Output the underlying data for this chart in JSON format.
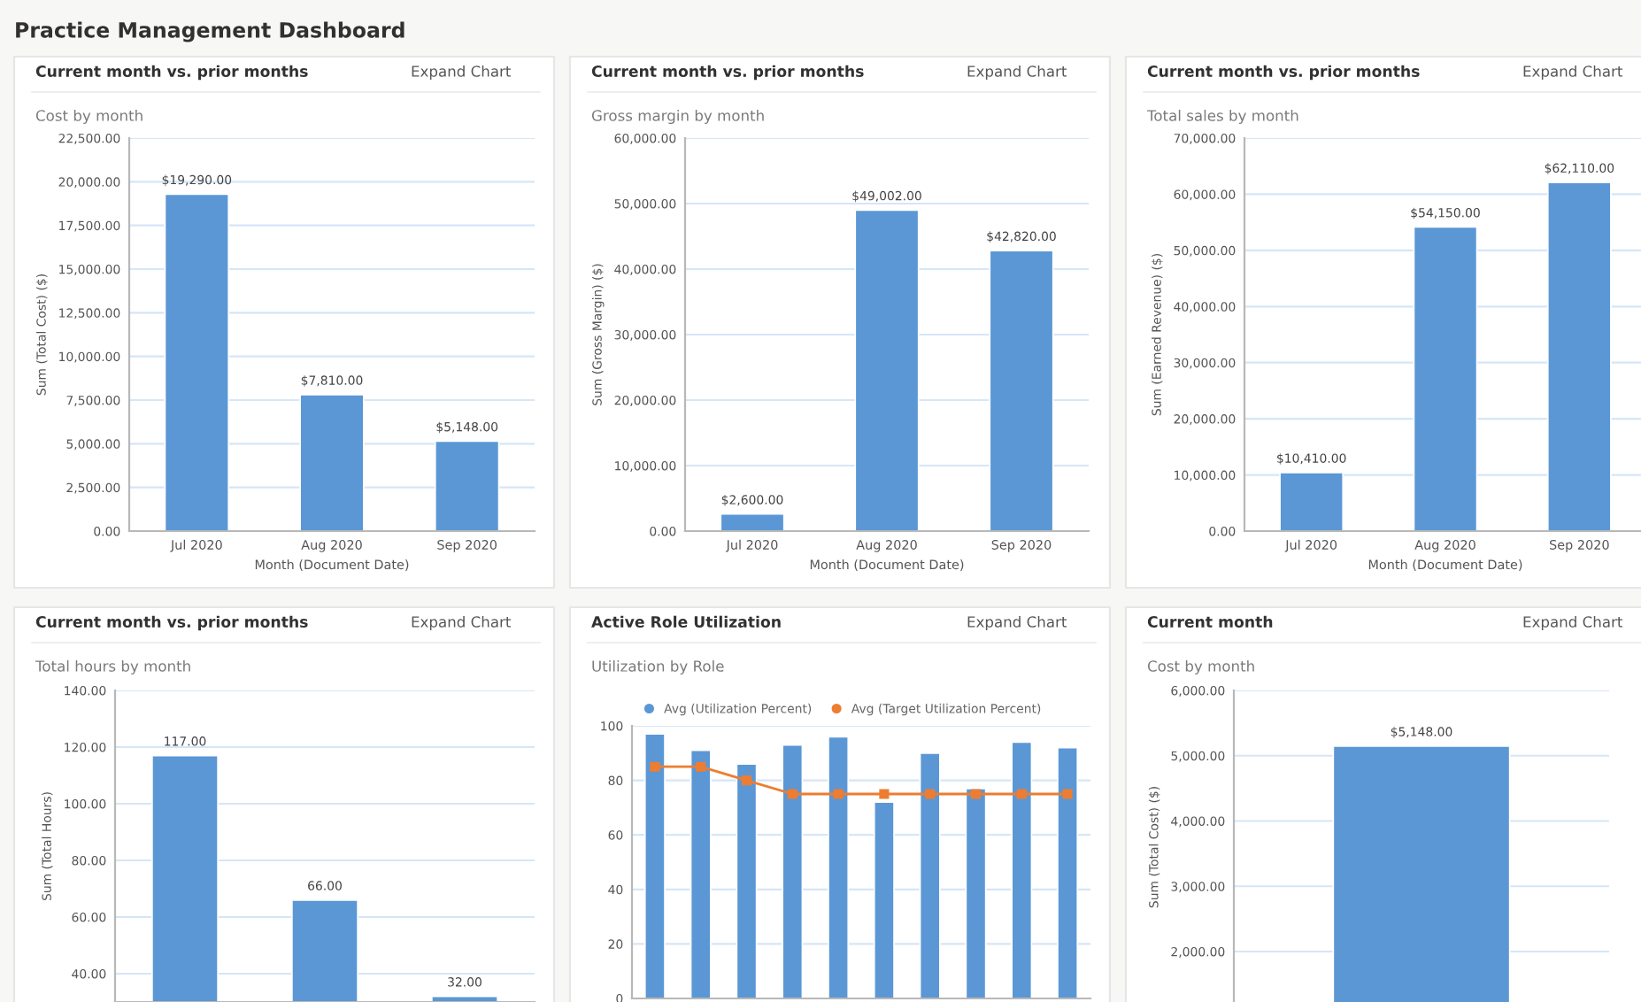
{
  "chart_data": [
    {
      "type": "bar",
      "title": "Current month vs. prior months",
      "subtitle": "Cost by month",
      "xlabel": "Month (Document Date)",
      "ylabel": "Sum (Total Cost) ($)",
      "annotations": [
        "Practice Management Dashboard",
        "Expand Chart"
      ],
      "categories": [
        "Jul 2020",
        "Aug 2020",
        "Sep 2020"
      ],
      "values": [
        19290,
        7810,
        5148
      ],
      "value_labels": [
        "$19,290.00",
        "$7,810.00",
        "$5,148.00"
      ],
      "color": "#5b97d5",
      "ylim": [
        0,
        22500
      ],
      "yticks": [
        {
          "value": 0,
          "label": "0.00"
        },
        {
          "value": 2500,
          "label": "2,500.00"
        },
        {
          "value": 5000,
          "label": "5,000.00"
        },
        {
          "value": 7500,
          "label": "7,500.00"
        },
        {
          "value": 10000,
          "label": "10,000.00"
        },
        {
          "value": 12500,
          "label": "12,500.00"
        },
        {
          "value": 15000,
          "label": "15,000.00"
        },
        {
          "value": 17500,
          "label": "17,500.00"
        },
        {
          "value": 20000,
          "label": "20,000.00"
        },
        {
          "value": 22500,
          "label": "22,500.00"
        }
      ],
      "grid": "y"
    },
    {
      "type": "bar",
      "title": "Current month vs. prior months",
      "subtitle": "Gross margin by month",
      "xlabel": "Month (Document Date)",
      "ylabel": "Sum (Gross Margin) ($)",
      "annotations": [
        "Expand Chart"
      ],
      "categories": [
        "Jul 2020",
        "Aug 2020",
        "Sep 2020"
      ],
      "values": [
        2600,
        49002,
        42820
      ],
      "value_labels": [
        "$2,600.00",
        "$49,002.00",
        "$42,820.00"
      ],
      "color": "#5b97d5",
      "ylim": [
        0,
        60000
      ],
      "yticks": [
        {
          "value": 0,
          "label": "0.00"
        },
        {
          "value": 10000,
          "label": "10,000.00"
        },
        {
          "value": 20000,
          "label": "20,000.00"
        },
        {
          "value": 30000,
          "label": "30,000.00"
        },
        {
          "value": 40000,
          "label": "40,000.00"
        },
        {
          "value": 50000,
          "label": "50,000.00"
        },
        {
          "value": 60000,
          "label": "60,000.00"
        }
      ],
      "grid": "y"
    },
    {
      "type": "bar",
      "title": "Current month vs. prior months",
      "subtitle": "Total sales by month",
      "xlabel": "Month (Document Date)",
      "ylabel": "Sum (Earned Revenue) ($)",
      "annotations": [
        "Expand Chart"
      ],
      "categories": [
        "Jul 2020",
        "Aug 2020",
        "Sep 2020"
      ],
      "values": [
        10410,
        54150,
        62110
      ],
      "value_labels": [
        "$10,410.00",
        "$54,150.00",
        "$62,110.00"
      ],
      "color": "#5b97d5",
      "ylim": [
        0,
        70000
      ],
      "yticks": [
        {
          "value": 0,
          "label": "0.00"
        },
        {
          "value": 10000,
          "label": "10,000.00"
        },
        {
          "value": 20000,
          "label": "20,000.00"
        },
        {
          "value": 30000,
          "label": "30,000.00"
        },
        {
          "value": 40000,
          "label": "40,000.00"
        },
        {
          "value": 50000,
          "label": "50,000.00"
        },
        {
          "value": 60000,
          "label": "60,000.00"
        },
        {
          "value": 70000,
          "label": "70,000.00"
        }
      ],
      "grid": "y"
    },
    {
      "type": "bar",
      "title": "Current month vs. prior months",
      "subtitle": "Total hours by month",
      "ylabel": "Sum (Total Hours)",
      "annotations": [
        "Expand Chart"
      ],
      "categories": [
        null,
        null,
        null
      ],
      "values": [
        117,
        66,
        32
      ],
      "value_labels": [
        "117.00",
        "66.00",
        "32.00"
      ],
      "color": "#5b97d5",
      "ylim": [
        30,
        140
      ],
      "yticks": [
        {
          "value": 40,
          "label": "40.00"
        },
        {
          "value": 60,
          "label": "60.00"
        },
        {
          "value": 80,
          "label": "80.00"
        },
        {
          "value": 100,
          "label": "100.00"
        },
        {
          "value": 120,
          "label": "120.00"
        },
        {
          "value": 140,
          "label": "140.00"
        }
      ],
      "grid": "y"
    },
    {
      "type": "bar",
      "title": "Active Role Utilization",
      "subtitle": "Utilization by Role",
      "annotations": [
        "Expand Chart"
      ],
      "categories": [
        null,
        null,
        null,
        null,
        null,
        null,
        null,
        null,
        null,
        null
      ],
      "series": [
        {
          "name": "Avg (Utilization Percent)",
          "type": "bar",
          "color": "#5b97d5",
          "values": [
            97,
            91,
            86,
            93,
            96,
            72,
            90,
            77,
            94,
            92
          ]
        },
        {
          "name": "Avg (Target Utilization Percent)",
          "type": "line",
          "color": "#ed7d31",
          "values": [
            85,
            85,
            80,
            75,
            75,
            75,
            75,
            75,
            75,
            75
          ]
        }
      ],
      "marker": "square",
      "legend": "top left",
      "ylim": [
        0,
        100
      ],
      "yticks": [
        0,
        20,
        40,
        60,
        80,
        100
      ],
      "grid": "y"
    },
    {
      "type": "bar",
      "title": "Current month",
      "subtitle": "Cost by month",
      "ylabel": "Sum (Total Cost) ($)",
      "annotations": [
        "Expand Chart"
      ],
      "categories": [
        null
      ],
      "values": [
        5148
      ],
      "value_labels": [
        "$5,148.00"
      ],
      "color": "#5b97d5",
      "ylim": [
        1200,
        6000
      ],
      "yticks": [
        {
          "value": 2000,
          "label": "2,000.00"
        },
        {
          "value": 3000,
          "label": "3,000.00"
        },
        {
          "value": 4000,
          "label": "4,000.00"
        },
        {
          "value": 5000,
          "label": "5,000.00"
        },
        {
          "value": 6000,
          "label": "6,000.00"
        }
      ],
      "grid": "y"
    }
  ]
}
